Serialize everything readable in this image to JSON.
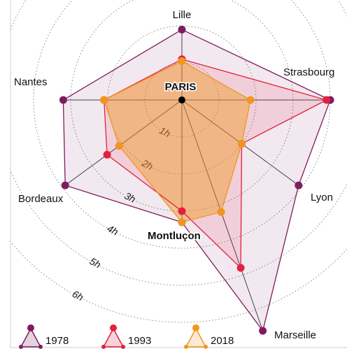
{
  "chart_data": {
    "type": "radar",
    "center_label": "PARIS",
    "categories": [
      "Lille",
      "Strasbourg",
      "Lyon",
      "Marseille",
      "Montluçon",
      "Bordeaux",
      "Nantes"
    ],
    "series": [
      {
        "name": "1978",
        "color": "#7d1d5e",
        "values": [
          1.9,
          4.0,
          3.9,
          6.6,
          3.3,
          3.9,
          3.2
        ]
      },
      {
        "name": "1993",
        "color": "#e3203f",
        "values": [
          1.1,
          3.9,
          2.0,
          4.8,
          3.0,
          2.5,
          2.1
        ]
      },
      {
        "name": "2018",
        "color": "#f0961e",
        "values": [
          1.05,
          1.85,
          2.0,
          3.2,
          3.3,
          2.1,
          2.1
        ]
      }
    ],
    "rlim": [
      0,
      7
    ],
    "rticks": [
      {
        "value": 1,
        "label": "1h"
      },
      {
        "value": 2,
        "label": "2h"
      },
      {
        "value": 3,
        "label": "3h"
      },
      {
        "value": 4,
        "label": "4h"
      },
      {
        "value": 5,
        "label": "5h"
      },
      {
        "value": 6,
        "label": "6h"
      }
    ],
    "grid": true
  }
}
